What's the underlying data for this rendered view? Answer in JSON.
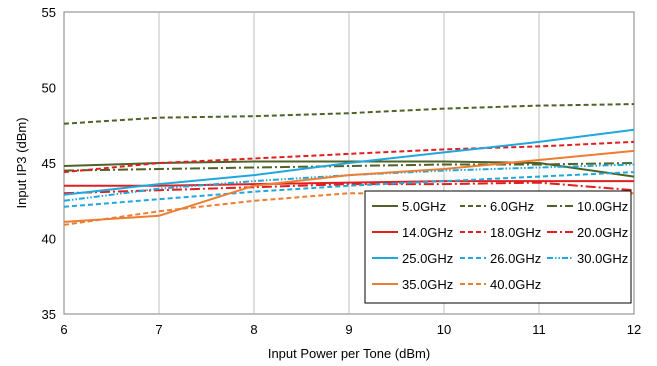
{
  "chart_data": {
    "type": "line",
    "title": "",
    "xlabel": "Input Power per Tone (dBm)",
    "ylabel": "Input IP3 (dBm)",
    "xlim": [
      6,
      12
    ],
    "ylim": [
      35,
      55
    ],
    "x_ticks": [
      "6",
      "7",
      "8",
      "9",
      "10",
      "11",
      "12"
    ],
    "y_ticks": [
      "35",
      "40",
      "45",
      "50",
      "55"
    ],
    "grid": "vertical",
    "legend_position": "bottom-right",
    "x": [
      6,
      7,
      8,
      9,
      10,
      11,
      12
    ],
    "series": [
      {
        "name": "5.0GHz",
        "color": "#4F6228",
        "dash": "solid",
        "values": [
          44.8,
          45.0,
          45.1,
          45.1,
          45.1,
          45.0,
          44.1
        ]
      },
      {
        "name": "6.0GHz",
        "color": "#4F6228",
        "dash": "dash",
        "values": [
          47.6,
          48.0,
          48.1,
          48.3,
          48.6,
          48.8,
          48.9
        ]
      },
      {
        "name": "10.0GHz",
        "color": "#4F6228",
        "dash": "longdash-dot",
        "values": [
          44.5,
          44.6,
          44.7,
          44.8,
          44.9,
          44.9,
          45.0
        ]
      },
      {
        "name": "14.0GHz",
        "color": "#E02020",
        "dash": "solid",
        "values": [
          43.5,
          43.5,
          43.6,
          43.7,
          43.8,
          43.8,
          43.8
        ]
      },
      {
        "name": "18.0GHz",
        "color": "#E02020",
        "dash": "dash",
        "values": [
          44.4,
          45.0,
          45.3,
          45.6,
          45.9,
          46.1,
          46.4
        ]
      },
      {
        "name": "20.0GHz",
        "color": "#E02020",
        "dash": "longdash-dot",
        "values": [
          43.0,
          43.2,
          43.4,
          43.6,
          43.6,
          43.7,
          43.2
        ]
      },
      {
        "name": "25.0GHz",
        "color": "#1FA8DC",
        "dash": "solid",
        "values": [
          42.9,
          43.6,
          44.2,
          45.0,
          45.7,
          46.4,
          47.2
        ]
      },
      {
        "name": "26.0GHz",
        "color": "#1FA8DC",
        "dash": "dash",
        "values": [
          42.1,
          42.6,
          43.1,
          43.5,
          43.8,
          44.1,
          44.4
        ]
      },
      {
        "name": "30.0GHz",
        "color": "#1FA8DC",
        "dash": "dash-dot-dot",
        "values": [
          42.5,
          43.3,
          43.8,
          44.2,
          44.5,
          44.7,
          44.9
        ]
      },
      {
        "name": "35.0GHz",
        "color": "#ED7D31",
        "dash": "solid",
        "values": [
          41.1,
          41.5,
          43.5,
          44.2,
          44.6,
          45.2,
          45.8
        ]
      },
      {
        "name": "40.0GHz",
        "color": "#ED7D31",
        "dash": "dash",
        "values": [
          40.9,
          41.8,
          42.5,
          43.0,
          42.9,
          42.9,
          43.0
        ]
      }
    ]
  }
}
